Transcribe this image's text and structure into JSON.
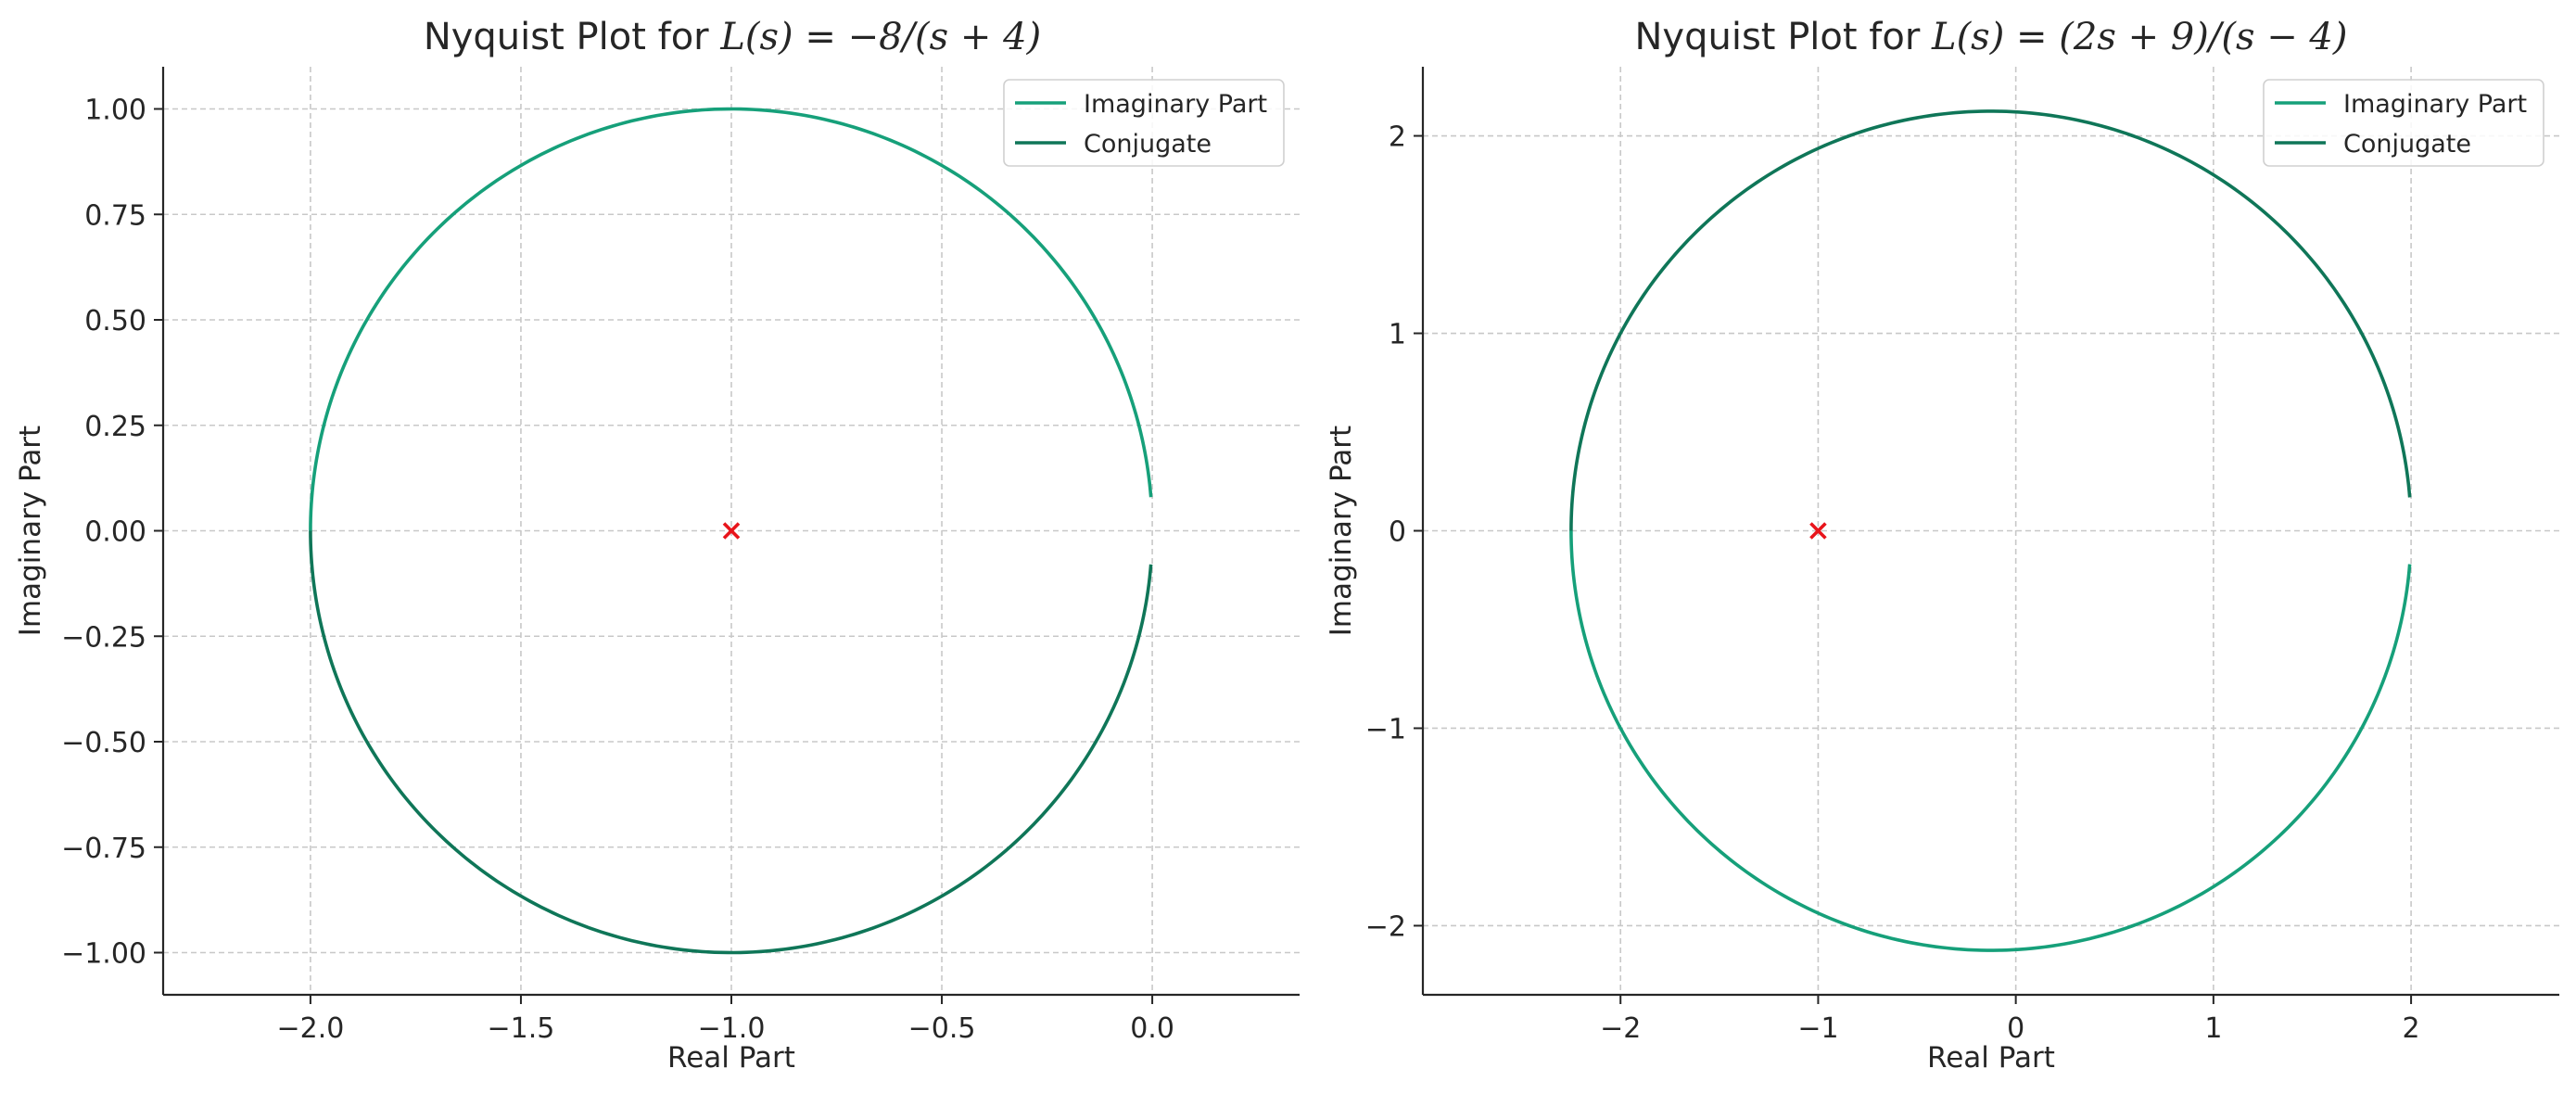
{
  "chart_data": [
    {
      "type": "line",
      "title": {
        "prefix": "Nyquist Plot for ",
        "lhs": "L(s)",
        "eq": " = −",
        "rhs": "8/(s + 4)"
      },
      "xlabel": "Real Part",
      "ylabel": "Imaginary Part",
      "xlim": [
        -2.35,
        0.35
      ],
      "ylim": [
        -1.1,
        1.1
      ],
      "xticks": [
        -2.0,
        -1.5,
        -1.0,
        -0.5,
        0.0
      ],
      "xtick_labels": [
        "−2.0",
        "−1.5",
        "−1.0",
        "−0.5",
        "0.0"
      ],
      "yticks": [
        -1.0,
        -0.75,
        -0.5,
        -0.25,
        0.0,
        0.25,
        0.5,
        0.75,
        1.0
      ],
      "ytick_labels": [
        "−1.00",
        "−0.75",
        "−0.50",
        "−0.25",
        "0.00",
        "0.25",
        "0.50",
        "0.75",
        "1.00"
      ],
      "grid": true,
      "legend": "top-right",
      "circle": {
        "center": [
          -1.0,
          0.0
        ],
        "radius": 1.0
      },
      "series": [
        {
          "name": "Imaginary Part",
          "color": "#16a07a",
          "start": [
            0.0,
            0.08
          ],
          "end": [
            -2.0,
            0.0
          ],
          "sweep": "upper"
        },
        {
          "name": "Conjugate",
          "color": "#0f7658",
          "start": [
            0.0,
            -0.08
          ],
          "end": [
            -2.0,
            0.0
          ],
          "sweep": "lower"
        }
      ],
      "marker": {
        "x": -1.0,
        "y": 0.0,
        "symbol": "x",
        "color": "#e8141b"
      }
    },
    {
      "type": "line",
      "title": {
        "prefix": "Nyquist Plot for ",
        "lhs": "L(s)",
        "eq": " = ",
        "rhs": "(2s + 9)/(s − 4)"
      },
      "xlabel": "Real Part",
      "ylabel": "Imaginary Part",
      "xlim": [
        -3.0,
        2.75
      ],
      "ylim": [
        -2.35,
        2.35
      ],
      "xticks": [
        -2,
        -1,
        0,
        1,
        2
      ],
      "xtick_labels": [
        "−2",
        "−1",
        "0",
        "1",
        "2"
      ],
      "yticks": [
        -2,
        -1,
        0,
        1,
        2
      ],
      "ytick_labels": [
        "−2",
        "−1",
        "0",
        "1",
        "2"
      ],
      "grid": true,
      "legend": "top-right",
      "circle": {
        "center": [
          -0.125,
          0.0
        ],
        "radius": 2.125
      },
      "series": [
        {
          "name": "Imaginary Part",
          "color": "#16a07a",
          "start": [
            2.0,
            -0.17
          ],
          "end": [
            -2.25,
            0.0
          ],
          "sweep": "lower"
        },
        {
          "name": "Conjugate",
          "color": "#0f7658",
          "start": [
            2.0,
            0.17
          ],
          "end": [
            -2.25,
            0.0
          ],
          "sweep": "upper"
        }
      ],
      "marker": {
        "x": -1.0,
        "y": 0.0,
        "symbol": "x",
        "color": "#e8141b"
      }
    }
  ]
}
